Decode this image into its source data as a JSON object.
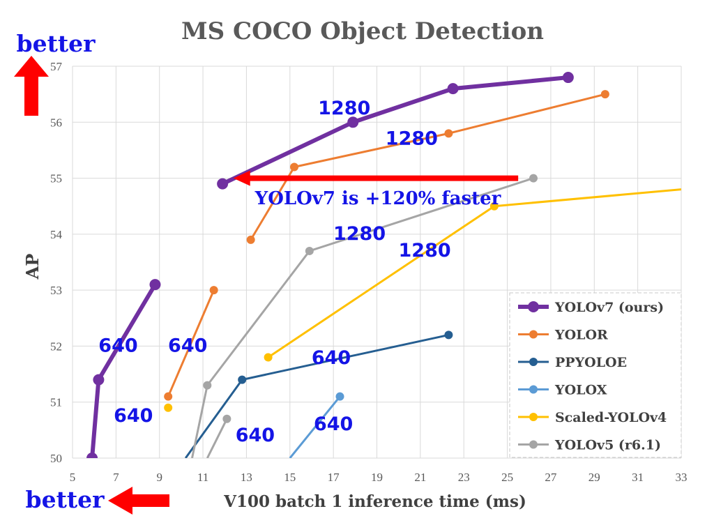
{
  "chart_data": {
    "type": "line",
    "title": "MS COCO Object Detection",
    "xlabel": "V100 batch 1 inference time (ms)",
    "ylabel": "AP",
    "xlim": [
      5,
      33
    ],
    "ylim": [
      50,
      57
    ],
    "xticks": [
      5,
      7,
      9,
      11,
      13,
      15,
      17,
      19,
      21,
      23,
      25,
      27,
      29,
      31,
      33
    ],
    "yticks": [
      50,
      51,
      52,
      53,
      54,
      55,
      56,
      57
    ],
    "grid": true,
    "legend_position": "bottom-right",
    "series": [
      {
        "name": "YOLOv7 (ours)",
        "color": "#7030a0",
        "points": [
          [
            5.9,
            50.0
          ],
          [
            6.2,
            51.4
          ],
          [
            8.8,
            53.1
          ]
        ],
        "marker": true
      },
      {
        "name": "YOLOv7 (ours)",
        "color": "#7030a0",
        "points": [
          [
            11.9,
            54.9
          ],
          [
            17.9,
            56.0
          ],
          [
            22.5,
            56.6
          ],
          [
            27.8,
            56.8
          ]
        ],
        "marker": true,
        "legend": false
      },
      {
        "name": "YOLOR",
        "color": "#ed7d31",
        "points": [
          [
            9.4,
            51.1
          ],
          [
            11.5,
            53.0
          ]
        ],
        "marker": true
      },
      {
        "name": "YOLOR",
        "color": "#ed7d31",
        "points": [
          [
            13.2,
            53.9
          ],
          [
            15.2,
            55.2
          ],
          [
            22.3,
            55.8
          ],
          [
            29.5,
            56.5
          ]
        ],
        "marker": true,
        "legend": false
      },
      {
        "name": "PPYOLOE",
        "color": "#255e91",
        "points": [
          [
            10.2,
            50.0
          ],
          [
            12.8,
            51.4
          ],
          [
            22.3,
            52.2
          ]
        ],
        "marker": true,
        "first_marker": false
      },
      {
        "name": "YOLOX",
        "color": "#5b9bd5",
        "points": [
          [
            15.0,
            50.0
          ],
          [
            17.3,
            51.1
          ]
        ],
        "marker": true,
        "first_marker": false
      },
      {
        "name": "Scaled-YOLOv4",
        "color": "#ffc000",
        "points": [
          [
            9.4,
            50.9
          ]
        ],
        "marker": true
      },
      {
        "name": "Scaled-YOLOv4",
        "color": "#ffc000",
        "points": [
          [
            14.0,
            51.8
          ],
          [
            24.4,
            54.5
          ],
          [
            33.0,
            54.8
          ]
        ],
        "marker": true,
        "last_marker": false,
        "legend": false
      },
      {
        "name": "YOLOv5 (r6.1)",
        "color": "#a5a5a5",
        "points": [
          [
            10.5,
            50.0
          ],
          [
            11.2,
            51.3
          ],
          [
            15.9,
            53.7
          ],
          [
            26.2,
            55.0
          ]
        ],
        "marker": true,
        "first_marker": false
      },
      {
        "name": "YOLOv5 (r6.1)",
        "color": "#a5a5a5",
        "points": [
          [
            11.2,
            50.0
          ],
          [
            12.1,
            50.7
          ]
        ],
        "marker": true,
        "first_marker": false,
        "legend": false
      }
    ],
    "annotations": [
      {
        "text": "1280",
        "x": 17.5,
        "y": 56.14
      },
      {
        "text": "1280",
        "x": 20.6,
        "y": 55.6
      },
      {
        "text": "1280",
        "x": 18.2,
        "y": 53.9
      },
      {
        "text": "1280",
        "x": 21.2,
        "y": 53.6
      },
      {
        "text": "640",
        "x": 7.1,
        "y": 51.9
      },
      {
        "text": "640",
        "x": 10.3,
        "y": 51.9
      },
      {
        "text": "640",
        "x": 7.8,
        "y": 50.65
      },
      {
        "text": "640",
        "x": 13.4,
        "y": 50.3
      },
      {
        "text": "640",
        "x": 16.9,
        "y": 51.68
      },
      {
        "text": "640",
        "x": 17.0,
        "y": 50.5
      }
    ],
    "arrow_annotation": {
      "text": "YOLOv7 is +120% faster",
      "from": [
        25.5,
        55.0
      ],
      "to": [
        12.4,
        55.0
      ]
    }
  },
  "better_y_label": "better",
  "better_x_label": "better",
  "colors": {
    "arrow": "#ff0000",
    "annotation": "#1414e6"
  }
}
